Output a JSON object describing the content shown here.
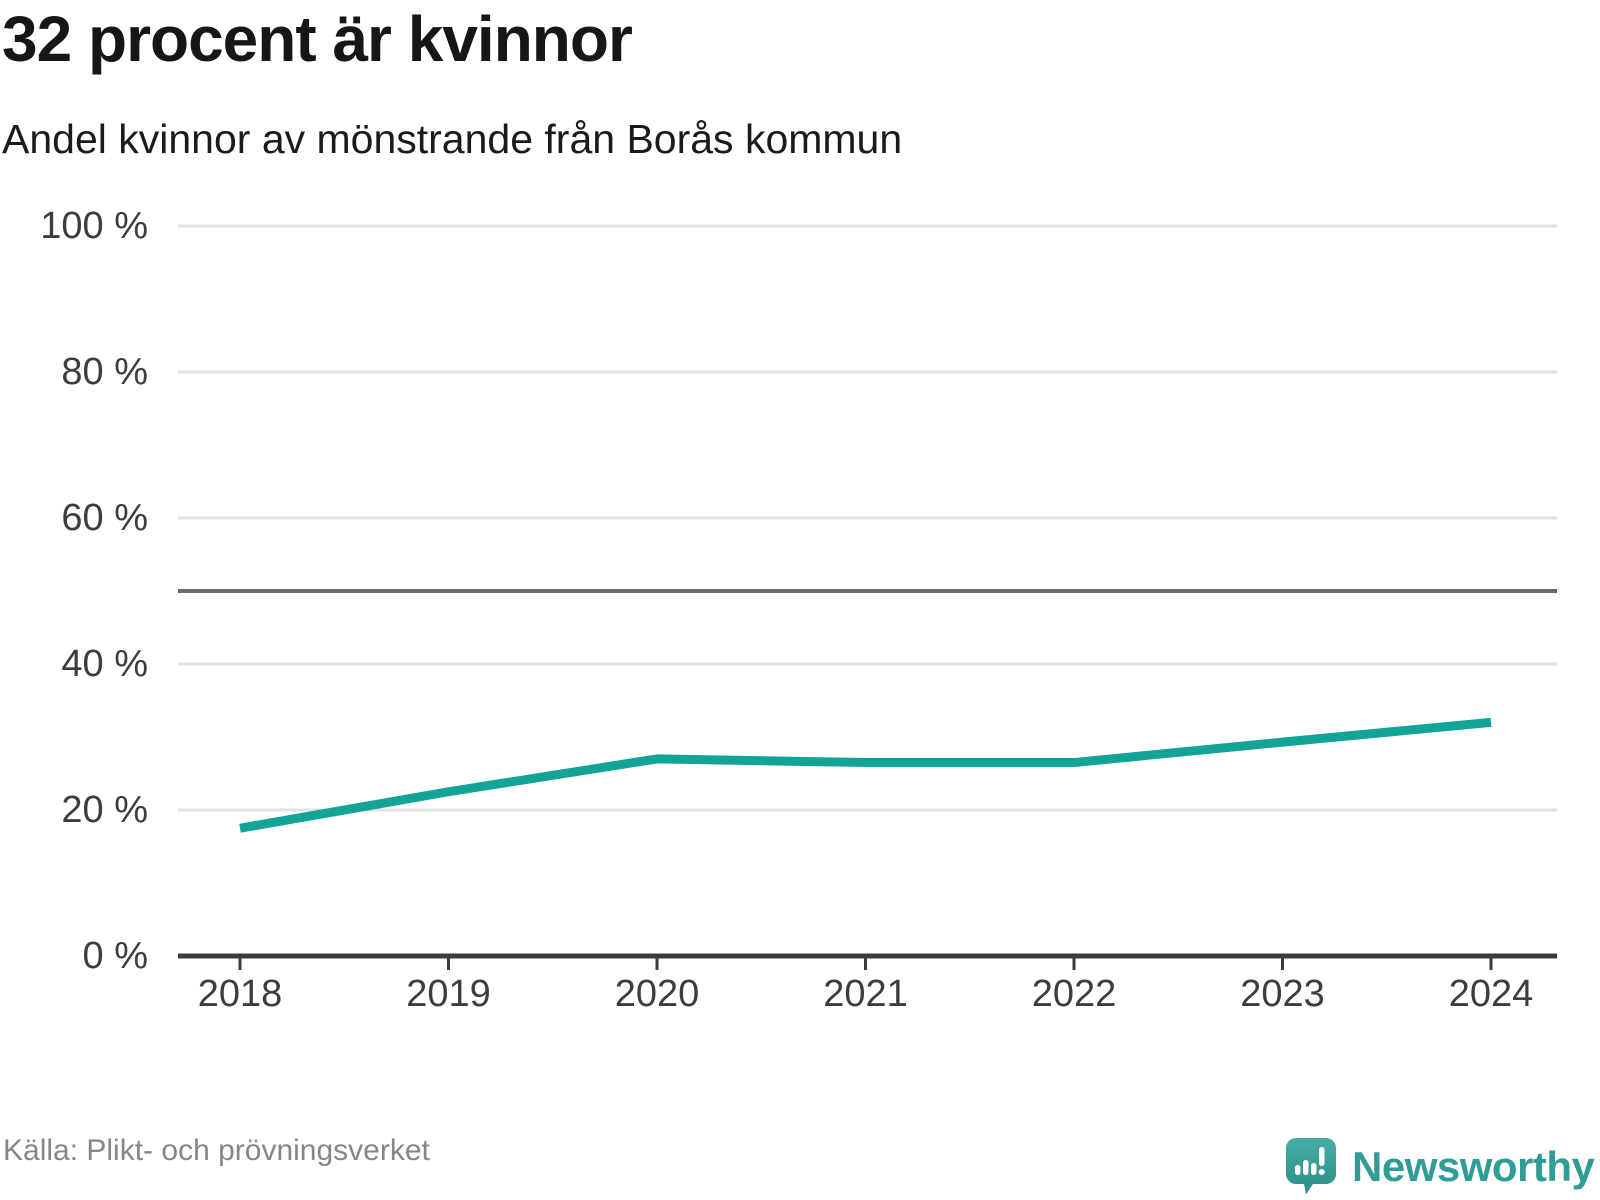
{
  "header": {
    "title": "32 procent är kvinnor",
    "subtitle": "Andel kvinnor av mönstrande från Borås kommun"
  },
  "footer": {
    "source": "Källa: Plikt- och prövningsverket",
    "brand": "Newsworthy"
  },
  "colors": {
    "line": "#12a399",
    "grid": "#e2e2e2",
    "ref_line": "#6a6a6a",
    "axis": "#3b3b3b",
    "tick_text": "#3d3d3d",
    "brand_teal": "#2f9d96",
    "source_text": "#868686"
  },
  "chart_data": {
    "type": "line",
    "title": "32 procent är kvinnor",
    "subtitle": "Andel kvinnor av mönstrande från Borås kommun",
    "x": [
      2018,
      2019,
      2020,
      2021,
      2022,
      2023,
      2024
    ],
    "xtick_labels": [
      "2018",
      "2019",
      "2020",
      "2021",
      "2022",
      "2023",
      "2024"
    ],
    "series": [
      {
        "name": "Andel kvinnor av mönstrande",
        "values": [
          17.5,
          22.5,
          27,
          26.5,
          26.5,
          29.3,
          32
        ]
      }
    ],
    "ylim": [
      0,
      100
    ],
    "yticks": [
      0,
      20,
      40,
      60,
      80,
      100
    ],
    "ytick_labels": [
      "0 %",
      "20 %",
      "40 %",
      "60 %",
      "80 %",
      "100 %"
    ],
    "reference_line": 50,
    "grid": "horizontal",
    "legend": "none",
    "unit": "%"
  }
}
